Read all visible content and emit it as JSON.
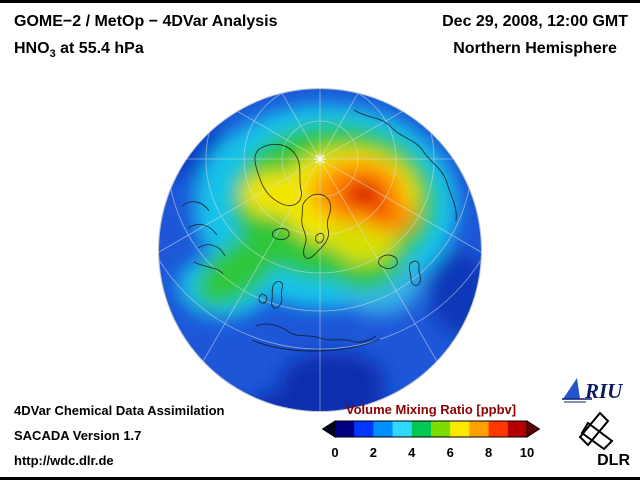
{
  "header": {
    "title": "GOME−2 / MetOp − 4DVar Analysis",
    "species": "HNO",
    "species_sub": "3",
    "level": " at 55.4 hPa",
    "datetime": "Dec 29, 2008, 12:00 GMT",
    "hemisphere": "Northern Hemisphere"
  },
  "footer": {
    "line1": "4DVar Chemical Data Assimilation",
    "line2": "SACADA Version 1.7",
    "line3": "http://wdc.dlr.de"
  },
  "colorbar": {
    "title": "Volume Mixing Ratio [ppbv]",
    "title_color": "#8b0000",
    "ticks": [
      "0",
      "2",
      "4",
      "6",
      "8",
      "10"
    ],
    "colors": [
      "#000080",
      "#0038ff",
      "#0090ff",
      "#2fd8ff",
      "#00c853",
      "#7ddc00",
      "#ffe800",
      "#ffa000",
      "#ff3800",
      "#b40000"
    ],
    "arrow_left_color": "#000020",
    "arrow_right_color": "#5a0000"
  },
  "logos": {
    "riu_text": "RIU",
    "dlr_text": "DLR"
  },
  "chart_data": {
    "type": "heatmap",
    "title": "GOME−2 / MetOp − 4DVar Analysis — HNO3 at 55.4 hPa",
    "datetime": "Dec 29, 2008, 12:00 GMT",
    "region": "Northern Hemisphere",
    "projection": "orthographic globe centered near North Pole, Europe/Africa at bottom",
    "colorbar_label": "Volume Mixing Ratio [ppbv]",
    "range": [
      0,
      10
    ],
    "ticks": [
      0,
      2,
      4,
      6,
      8,
      10
    ],
    "field_summary": [
      {
        "region": "Arctic polar cap, maximum displaced toward Siberia",
        "value_ppbv": 8.5
      },
      {
        "region": "ring around polar maximum (N Russia, Barents Sea)",
        "value_ppbv": 6.5
      },
      {
        "region": "Greenland / Canadian Arctic patch",
        "value_ppbv": 5.5
      },
      {
        "region": "green band arcing over N Atlantic and N Canada",
        "value_ppbv": 4.5
      },
      {
        "region": "cyan mid-latitude ring (NW Europe, N Pacific side)",
        "value_ppbv": 3
      },
      {
        "region": "blue mid-latitudes (S Europe, limb)",
        "value_ppbv": 2
      },
      {
        "region": "dark blue subtropical limb (N Africa, bottom of disk)",
        "value_ppbv": 1
      }
    ]
  }
}
